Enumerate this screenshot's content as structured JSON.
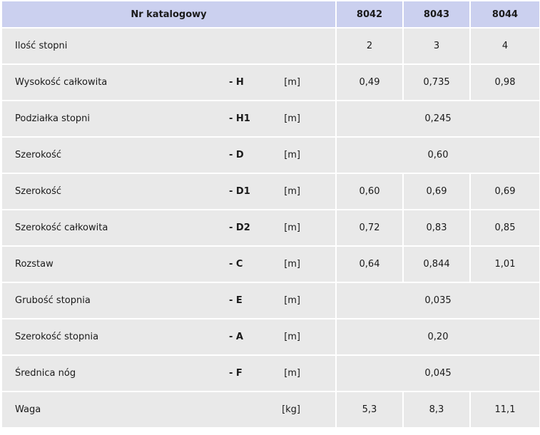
{
  "header": {
    "title": "Nr katalogowy",
    "cols": [
      "8042",
      "8043",
      "8044"
    ]
  },
  "rows": [
    {
      "label": "Ilość stopni",
      "sym": "",
      "unit": "",
      "values": [
        "2",
        "3",
        "4"
      ]
    },
    {
      "label": "Wysokość całkowita",
      "sym": "- H",
      "unit": "[m]",
      "values": [
        "0,49",
        "0,735",
        "0,98"
      ]
    },
    {
      "label": "Podziałka stopni",
      "sym": "- H1",
      "unit": "[m]",
      "merged": "0,245"
    },
    {
      "label": "Szerokość",
      "sym": "- D",
      "unit": "[m]",
      "merged": "0,60"
    },
    {
      "label": "Szerokość",
      "sym": "- D1",
      "unit": "[m]",
      "values": [
        "0,60",
        "0,69",
        "0,69"
      ]
    },
    {
      "label": "Szerokość całkowita",
      "sym": "- D2",
      "unit": "[m]",
      "values": [
        "0,72",
        "0,83",
        "0,85"
      ]
    },
    {
      "label": "Rozstaw",
      "sym": "- C",
      "unit": "[m]",
      "values": [
        "0,64",
        "0,844",
        "1,01"
      ]
    },
    {
      "label": "Grubość stopnia",
      "sym": "- E",
      "unit": "[m]",
      "merged": "0,035"
    },
    {
      "label": "Szerokość stopnia",
      "sym": "- A",
      "unit": "[m]",
      "merged": "0,20"
    },
    {
      "label": "Średnica nóg",
      "sym": "- F",
      "unit": "[m]",
      "merged": "0,045"
    },
    {
      "label": "Waga",
      "sym": "",
      "unit": "[kg]",
      "values": [
        "5,3",
        "8,3",
        "11,1"
      ]
    }
  ]
}
